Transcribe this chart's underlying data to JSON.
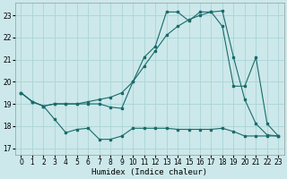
{
  "xlabel": "Humidex (Indice chaleur)",
  "xlim": [
    -0.5,
    23.5
  ],
  "ylim": [
    16.7,
    23.55
  ],
  "yticks": [
    17,
    18,
    19,
    20,
    21,
    22,
    23
  ],
  "xticks": [
    0,
    1,
    2,
    3,
    4,
    5,
    6,
    7,
    8,
    9,
    10,
    11,
    12,
    13,
    14,
    15,
    16,
    17,
    18,
    19,
    20,
    21,
    22,
    23
  ],
  "bg_color": "#cce8ea",
  "grid_color": "#aad4d8",
  "line_color": "#1a6b6b",
  "line1_x": [
    0,
    1,
    2,
    3,
    4,
    5,
    6,
    7,
    8,
    9,
    10,
    11,
    12,
    13,
    14,
    15,
    16,
    17,
    18,
    19,
    20,
    21,
    22,
    23
  ],
  "line1_y": [
    19.5,
    19.1,
    18.9,
    19.0,
    19.0,
    19.0,
    19.1,
    19.2,
    19.3,
    19.5,
    20.0,
    20.7,
    21.4,
    22.1,
    22.5,
    22.8,
    23.0,
    23.15,
    23.2,
    21.1,
    19.2,
    18.1,
    17.6,
    17.55
  ],
  "line2_x": [
    0,
    1,
    2,
    3,
    4,
    5,
    6,
    7,
    8,
    9,
    10,
    11,
    12,
    13,
    14,
    15,
    16,
    17,
    18,
    19,
    20,
    21,
    22,
    23
  ],
  "line2_y": [
    19.5,
    19.1,
    18.9,
    18.3,
    17.7,
    17.85,
    17.9,
    17.4,
    17.4,
    17.55,
    17.9,
    17.9,
    17.9,
    17.9,
    17.85,
    17.85,
    17.85,
    17.85,
    17.9,
    17.75,
    17.55,
    17.55,
    17.55,
    17.55
  ],
  "line3_x": [
    0,
    1,
    2,
    3,
    4,
    5,
    6,
    7,
    8,
    9,
    10,
    11,
    12,
    13,
    14,
    15,
    16,
    17,
    18,
    19,
    20,
    21,
    22,
    23
  ],
  "line3_y": [
    19.5,
    19.1,
    18.9,
    19.0,
    19.0,
    19.0,
    19.0,
    19.0,
    18.85,
    18.8,
    20.0,
    21.1,
    21.6,
    23.15,
    23.15,
    22.75,
    23.15,
    23.15,
    22.5,
    19.8,
    19.8,
    21.1,
    18.1,
    17.55
  ]
}
